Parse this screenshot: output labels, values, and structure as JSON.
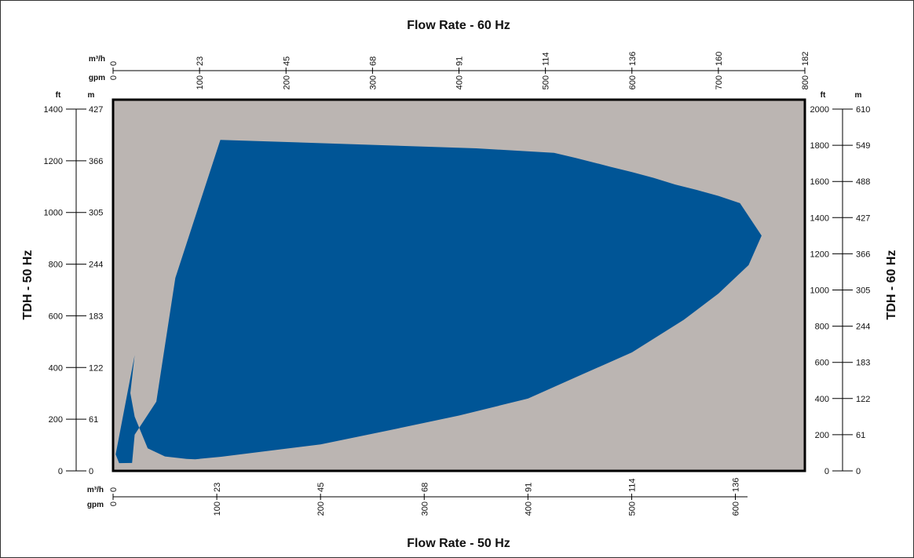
{
  "chart_data": {
    "type": "area",
    "title_top": "Flow Rate - 60 Hz",
    "title_bottom": "Flow Rate - 50 Hz",
    "title_left": "TDH - 50 Hz",
    "title_right": "TDH - 60 Hz",
    "colors": {
      "region": "#005596",
      "plot_bg": "#bbb5b2",
      "frame": "#000000",
      "outer_border": "#333333"
    },
    "axes": {
      "top": {
        "m3h_unit": "m³/h",
        "gpm_unit": "gpm",
        "gpm_range": [
          0,
          800
        ],
        "ticks_gpm": [
          0,
          100,
          200,
          300,
          400,
          500,
          600,
          700,
          800
        ],
        "m3h_labels": [
          "0",
          "23",
          "45",
          "68",
          "91",
          "114",
          "136",
          "160",
          "182"
        ]
      },
      "bottom": {
        "m3h_unit": "m³/h",
        "gpm_unit": "gpm",
        "gpm_range": [
          0,
          667
        ],
        "ticks_gpm": [
          0,
          100,
          200,
          300,
          400,
          500,
          600
        ],
        "m3h_labels": [
          "0",
          "23",
          "45",
          "68",
          "91",
          "114",
          "136"
        ]
      },
      "left": {
        "ft_unit": "ft",
        "m_unit": "m",
        "ft_range": [
          0,
          1400
        ],
        "ticks_ft": [
          0,
          200,
          400,
          600,
          800,
          1000,
          1200,
          1400
        ],
        "m_labels": [
          "0",
          "61",
          "122",
          "183",
          "244",
          "305",
          "366",
          "427"
        ]
      },
      "right": {
        "ft_unit": "ft",
        "m_unit": "m",
        "ft_range": [
          0,
          2000
        ],
        "ticks_ft": [
          0,
          200,
          400,
          600,
          800,
          1000,
          1200,
          1400,
          1600,
          1800,
          2000
        ],
        "m_labels": [
          "0",
          "61",
          "122",
          "183",
          "244",
          "305",
          "366",
          "427",
          "488",
          "549",
          "610"
        ]
      }
    },
    "series": [
      {
        "x_gpm_60hz": [
          7,
          22,
          25,
          50,
          72,
          124,
          420,
          510,
          535,
          560,
          575,
          600,
          625,
          650,
          675,
          700,
          725,
          750,
          735,
          700,
          660,
          600,
          540,
          480,
          400,
          315,
          240,
          175,
          125,
          95,
          85,
          60,
          40,
          25,
          20,
          25,
          3
        ],
        "y_ft_60hz": [
          43,
          44,
          200,
          383,
          1067,
          1830,
          1783,
          1758,
          1730,
          1700,
          1681,
          1652,
          1620,
          1583,
          1553,
          1520,
          1480,
          1300,
          1138,
          980,
          835,
          655,
          528,
          400,
          306,
          220,
          146,
          108,
          78,
          64,
          66,
          80,
          125,
          300,
          430,
          640,
          91
        ]
      }
    ]
  }
}
